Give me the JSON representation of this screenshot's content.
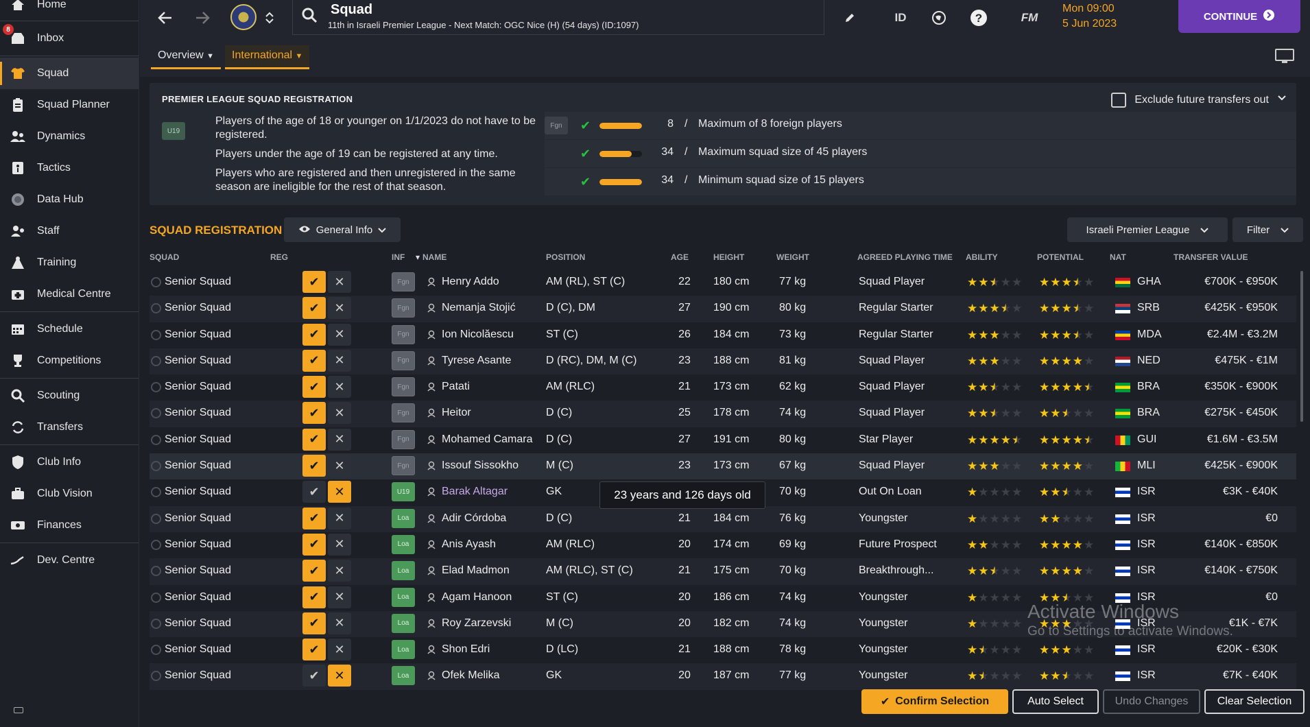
{
  "sidebar": {
    "items": [
      {
        "label": "Home",
        "icon": "home-icon"
      },
      {
        "label": "Inbox",
        "icon": "inbox-icon",
        "badge": "8"
      },
      {
        "label": "Squad",
        "icon": "shirt-icon",
        "active": true
      },
      {
        "label": "Squad Planner",
        "icon": "clipboard-icon"
      },
      {
        "label": "Dynamics",
        "icon": "people-icon"
      },
      {
        "label": "Tactics",
        "icon": "tactics-icon"
      },
      {
        "label": "Data Hub",
        "icon": "data-icon"
      },
      {
        "label": "Staff",
        "icon": "staff-icon"
      },
      {
        "label": "Training",
        "icon": "training-icon"
      },
      {
        "label": "Medical Centre",
        "icon": "medical-icon"
      },
      {
        "label": "Schedule",
        "icon": "calendar-icon"
      },
      {
        "label": "Competitions",
        "icon": "trophy-icon"
      },
      {
        "label": "Scouting",
        "icon": "search-icon"
      },
      {
        "label": "Transfers",
        "icon": "transfer-icon"
      },
      {
        "label": "Club Info",
        "icon": "shield-icon"
      },
      {
        "label": "Club Vision",
        "icon": "briefcase-icon"
      },
      {
        "label": "Finances",
        "icon": "money-icon"
      },
      {
        "label": "Dev. Centre",
        "icon": "growth-icon"
      }
    ]
  },
  "header": {
    "title": "Squad",
    "subtitle": "11th in Israeli Premier League - Next Match: OGC Nice (H) (54 days) (ID:1097)",
    "id_label": "ID",
    "fm_label": "FM",
    "time": "Mon 09:00",
    "date": "5 Jun 2023",
    "continue_label": "CONTINUE",
    "tabs": [
      {
        "label": "Overview"
      },
      {
        "label": "International"
      }
    ]
  },
  "registration": {
    "title": "PREMIER LEAGUE SQUAD REGISTRATION",
    "u19_tag": "U19",
    "fgn_tag": "Fgn",
    "rules": [
      "Players of the age of 18 or younger on 1/1/2023 do not have to be registered.",
      "Players under the age of 19 can be registered at any time.",
      "Players who are registered and then unregistered in the same season are ineligible for the rest of that season."
    ],
    "limits": [
      {
        "value": "8",
        "text": "Maximum of 8 foreign players",
        "fill": 1.0
      },
      {
        "value": "34",
        "text": "Maximum squad size of 45 players",
        "fill": 0.76
      },
      {
        "value": "34",
        "text": "Minimum squad size of 15 players",
        "fill": 1.0
      }
    ],
    "exclude_label": "Exclude future transfers out"
  },
  "squad": {
    "section_title": "SQUAD REGISTRATION",
    "view_label": "General Info",
    "league_label": "Israeli Premier League",
    "filter_label": "Filter",
    "columns": {
      "squad": "SQUAD",
      "reg": "REG",
      "inf": "INF",
      "name": "NAME",
      "position": "POSITION",
      "age": "AGE",
      "height": "HEIGHT",
      "weight": "WEIGHT",
      "apt": "AGREED PLAYING TIME",
      "ability": "ABILITY",
      "potential": "POTENTIAL",
      "nat": "NAT",
      "tv": "TRANSFER VALUE"
    },
    "rows": [
      {
        "squad": "Senior Squad",
        "reg": true,
        "inf": "Fgn",
        "name": "Henry Addo",
        "position": "AM (RL), ST (C)",
        "age": "22",
        "height": "180 cm",
        "weight": "77 kg",
        "apt": "Squad Player",
        "ability": 2.5,
        "potential": 3.5,
        "nat": "GHA",
        "tv": "€700K - €950K"
      },
      {
        "squad": "Senior Squad",
        "reg": true,
        "inf": "Fgn",
        "name": "Nemanja Stojić",
        "position": "D (C), DM",
        "age": "27",
        "height": "190 cm",
        "weight": "80 kg",
        "apt": "Regular Starter",
        "ability": 3.5,
        "potential": 3.5,
        "nat": "SRB",
        "tv": "€425K - €950K"
      },
      {
        "squad": "Senior Squad",
        "reg": true,
        "inf": "Fgn",
        "name": "Ion Nicolăescu",
        "position": "ST (C)",
        "age": "26",
        "height": "184 cm",
        "weight": "73 kg",
        "apt": "Regular Starter",
        "ability": 3,
        "potential": 3.5,
        "nat": "MDA",
        "tv": "€2.4M - €3.2M"
      },
      {
        "squad": "Senior Squad",
        "reg": true,
        "inf": "Fgn",
        "name": "Tyrese Asante",
        "position": "D (RC), DM, M (C)",
        "age": "23",
        "height": "188 cm",
        "weight": "81 kg",
        "apt": "Squad Player",
        "ability": 3,
        "potential": 4,
        "nat": "NED",
        "tv": "€475K - €1M"
      },
      {
        "squad": "Senior Squad",
        "reg": true,
        "inf": "Fgn",
        "name": "Patati",
        "position": "AM (RLC)",
        "age": "21",
        "height": "173 cm",
        "weight": "62 kg",
        "apt": "Squad Player",
        "ability": 2.5,
        "potential": 4.5,
        "nat": "BRA",
        "tv": "€350K - €900K"
      },
      {
        "squad": "Senior Squad",
        "reg": true,
        "inf": "Fgn",
        "name": "Heitor",
        "position": "D (C)",
        "age": "25",
        "height": "178 cm",
        "weight": "74 kg",
        "apt": "Squad Player",
        "ability": 2.5,
        "potential": 2.5,
        "nat": "BRA",
        "tv": "€275K - €450K"
      },
      {
        "squad": "Senior Squad",
        "reg": true,
        "inf": "Fgn",
        "name": "Mohamed Camara",
        "position": "D (C)",
        "age": "27",
        "height": "191 cm",
        "weight": "80 kg",
        "apt": "Star Player",
        "ability": 4.5,
        "potential": 4.5,
        "nat": "GUI",
        "tv": "€1.6M - €3.5M"
      },
      {
        "squad": "Senior Squad",
        "reg": true,
        "inf": "Fgn",
        "name": "Issouf Sissokho",
        "position": "M (C)",
        "age": "23",
        "height": "173 cm",
        "weight": "67 kg",
        "apt": "Squad Player",
        "ability": 3,
        "potential": 4,
        "nat": "MLI",
        "tv": "€425K - €900K"
      },
      {
        "squad": "Senior Squad",
        "reg": false,
        "inf": "U19",
        "name": "Barak Altagar",
        "position": "GK",
        "age": "",
        "height": "",
        "weight": "70 kg",
        "apt": "Out On Loan",
        "ability": 1,
        "potential": 2.5,
        "nat": "ISR",
        "tv": "€3K - €40K",
        "loan": true
      },
      {
        "squad": "Senior Squad",
        "reg": true,
        "inf": "Loa",
        "name": "Adir Córdoba",
        "position": "D (C)",
        "age": "21",
        "height": "184 cm",
        "weight": "76 kg",
        "apt": "Youngster",
        "ability": 1,
        "potential": 2,
        "nat": "ISR",
        "tv": "€0"
      },
      {
        "squad": "Senior Squad",
        "reg": true,
        "inf": "Loa",
        "name": "Anis Ayash",
        "position": "AM (RLC)",
        "age": "20",
        "height": "174 cm",
        "weight": "69 kg",
        "apt": "Future Prospect",
        "ability": 2,
        "potential": 4,
        "nat": "ISR",
        "tv": "€140K - €850K"
      },
      {
        "squad": "Senior Squad",
        "reg": true,
        "inf": "Loa",
        "name": "Elad Madmon",
        "position": "AM (RLC), ST (C)",
        "age": "21",
        "height": "175 cm",
        "weight": "70 kg",
        "apt": "Breakthrough...",
        "ability": 2.5,
        "potential": 4,
        "nat": "ISR",
        "tv": "€140K - €750K"
      },
      {
        "squad": "Senior Squad",
        "reg": true,
        "inf": "Loa",
        "name": "Agam Hanoon",
        "position": "ST (C)",
        "age": "20",
        "height": "186 cm",
        "weight": "74 kg",
        "apt": "Youngster",
        "ability": 1,
        "potential": 2.5,
        "nat": "ISR",
        "tv": "€0"
      },
      {
        "squad": "Senior Squad",
        "reg": true,
        "inf": "Loa",
        "name": "Roy Zarzevski",
        "position": "M (C)",
        "age": "20",
        "height": "182 cm",
        "weight": "74 kg",
        "apt": "Youngster",
        "ability": 1,
        "potential": 3,
        "nat": "ISR",
        "tv": "€1K - €7K"
      },
      {
        "squad": "Senior Squad",
        "reg": true,
        "inf": "Loa",
        "name": "Shon Edri",
        "position": "D (LC)",
        "age": "21",
        "height": "188 cm",
        "weight": "78 kg",
        "apt": "Youngster",
        "ability": 1.5,
        "potential": 3,
        "nat": "ISR",
        "tv": "€20K - €30K"
      },
      {
        "squad": "Senior Squad",
        "reg": false,
        "inf": "Loa",
        "name": "Ofek Melika",
        "position": "GK",
        "age": "20",
        "height": "187 cm",
        "weight": "77 kg",
        "apt": "Youngster",
        "ability": 1.5,
        "potential": 2.5,
        "nat": "ISR",
        "tv": "€7K - €40K"
      }
    ],
    "tooltip": "23 years and 126 days old"
  },
  "footer": {
    "confirm_label": "Confirm Selection",
    "auto_label": "Auto Select",
    "undo_label": "Undo Changes",
    "clear_label": "Clear Selection"
  },
  "watermark": {
    "line1": "Activate Windows",
    "line2": "Go to Settings to activate Windows."
  },
  "colors": {
    "accent": "#f5a623",
    "continue": "#6a3bb2",
    "check": "#28c040"
  }
}
